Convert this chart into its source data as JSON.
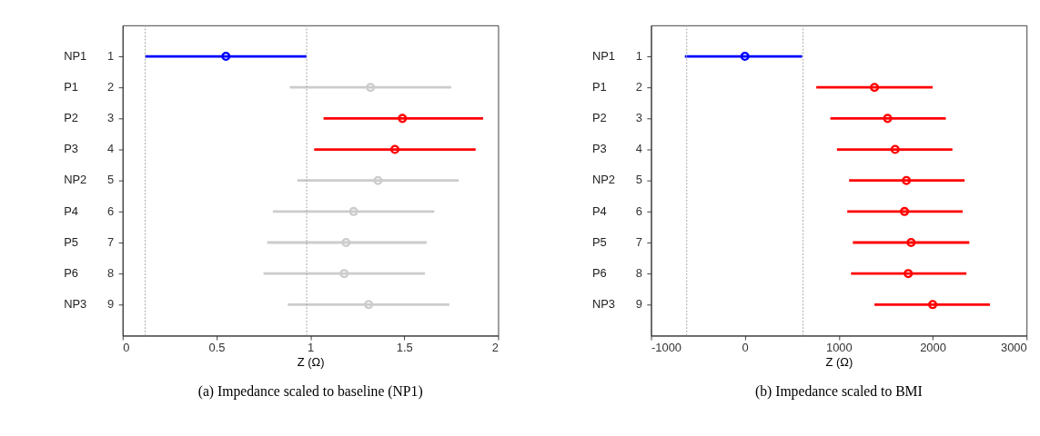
{
  "chart_data": [
    {
      "type": "scatter",
      "orientation": "horizontal",
      "title": "(a) Impedance scaled to baseline (NP1)",
      "xlabel": "Z (Ω)",
      "categories": [
        "1",
        "2",
        "3",
        "4",
        "5",
        "6",
        "7",
        "8",
        "9"
      ],
      "annotations": [
        "NP1",
        "P1",
        "P2",
        "P3",
        "NP2",
        "P4",
        "P5",
        "P6",
        "NP3"
      ],
      "values": [
        0.55,
        1.32,
        1.49,
        1.45,
        1.36,
        1.23,
        1.19,
        1.18,
        1.31
      ],
      "errors": [
        [
          0.12,
          0.98
        ],
        [
          0.89,
          1.75
        ],
        [
          1.07,
          1.92
        ],
        [
          1.02,
          1.88
        ],
        [
          0.93,
          1.79
        ],
        [
          0.8,
          1.66
        ],
        [
          0.77,
          1.62
        ],
        [
          0.75,
          1.61
        ],
        [
          0.88,
          1.74
        ]
      ],
      "colors": [
        "#0000ff",
        "#cccccc",
        "#ff0000",
        "#ff0000",
        "#cccccc",
        "#cccccc",
        "#cccccc",
        "#cccccc",
        "#cccccc"
      ],
      "xlim": [
        0,
        2
      ],
      "xticks": [
        0,
        0.5,
        1,
        1.5,
        2
      ],
      "ref_lines": [
        {
          "axis": "x",
          "value": 0.12,
          "color": "#999999",
          "line_style": "dotted"
        },
        {
          "axis": "x",
          "value": 0.98,
          "color": "#999999",
          "line_style": "dotted"
        }
      ],
      "marker": "circle",
      "grid": false
    },
    {
      "type": "scatter",
      "orientation": "horizontal",
      "title": "(b) Impedance scaled to BMI",
      "xlabel": "Z (Ω)",
      "categories": [
        "1",
        "2",
        "3",
        "4",
        "5",
        "6",
        "7",
        "8",
        "9"
      ],
      "annotations": [
        "NP1",
        "P1",
        "P2",
        "P3",
        "NP2",
        "P4",
        "P5",
        "P6",
        "NP3"
      ],
      "values": [
        0,
        1380,
        1520,
        1600,
        1720,
        1700,
        1770,
        1740,
        2000
      ],
      "errors": [
        [
          -640,
          610
        ],
        [
          760,
          2000
        ],
        [
          910,
          2140
        ],
        [
          980,
          2210
        ],
        [
          1110,
          2340
        ],
        [
          1090,
          2320
        ],
        [
          1150,
          2390
        ],
        [
          1130,
          2360
        ],
        [
          1380,
          2610
        ]
      ],
      "colors": [
        "#0000ff",
        "#ff0000",
        "#ff0000",
        "#ff0000",
        "#ff0000",
        "#ff0000",
        "#ff0000",
        "#ff0000",
        "#ff0000"
      ],
      "xlim": [
        -1000,
        3000
      ],
      "xticks": [
        -1000,
        0,
        1000,
        2000,
        3000
      ],
      "ref_lines": [
        {
          "axis": "x",
          "value": -620,
          "color": "#999999",
          "line_style": "dotted"
        },
        {
          "axis": "x",
          "value": 620,
          "color": "#999999",
          "line_style": "dotted"
        }
      ],
      "marker": "circle",
      "grid": false
    }
  ]
}
